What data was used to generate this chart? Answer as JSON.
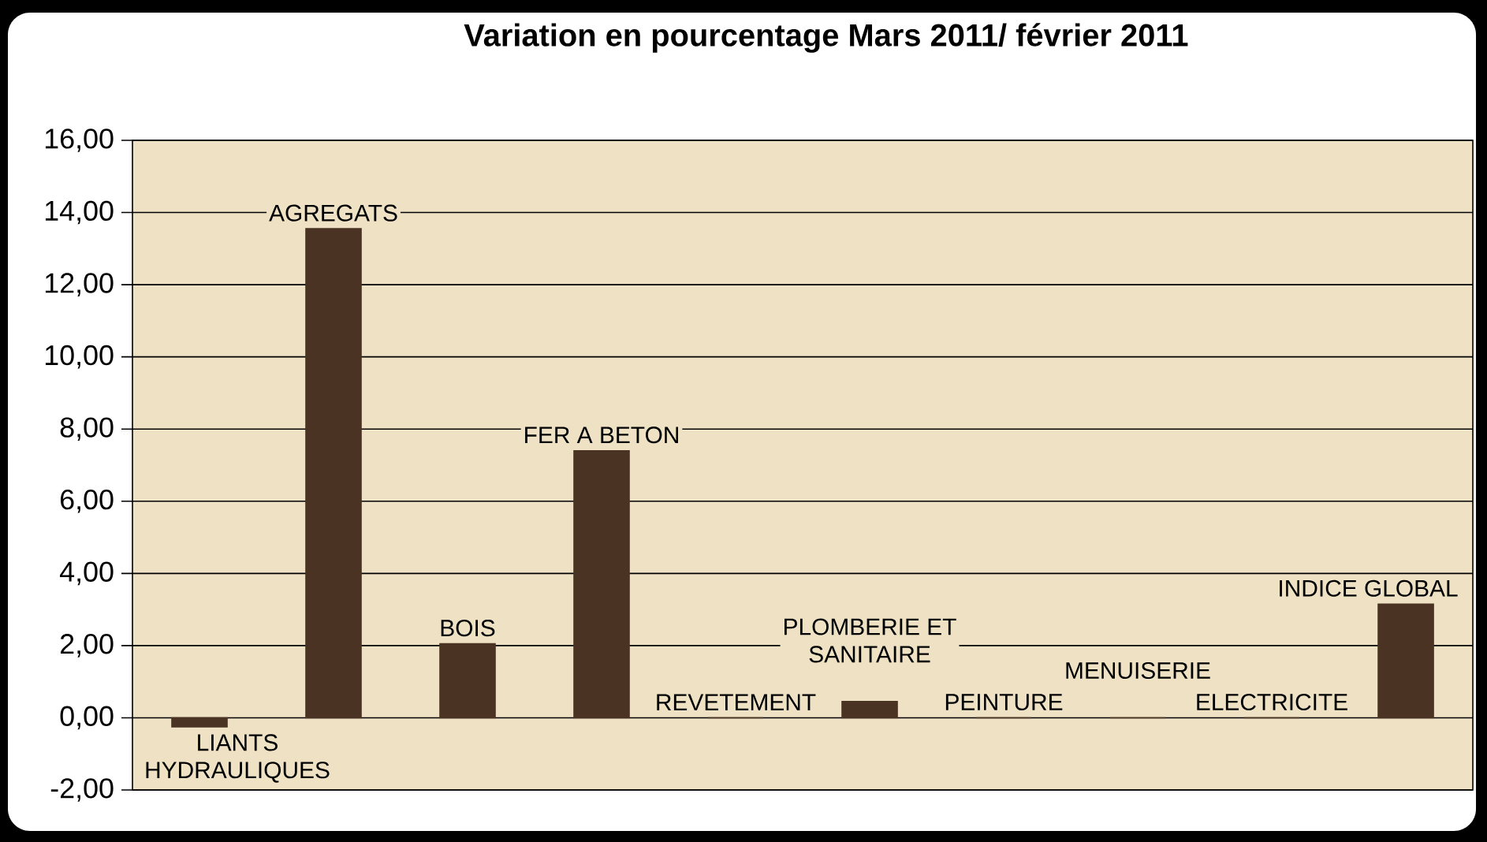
{
  "chart_data": {
    "type": "bar",
    "title": "Variation  en pourcentage Mars 2011/ février 2011",
    "categories": [
      "LIANTS HYDRAULIQUES",
      "AGREGATS",
      "BOIS",
      "FER A BETON",
      "REVETEMENT",
      "PLOMBERIE ET SANITAIRE",
      "PEINTURE",
      "MENUISERIE",
      "ELECTRICITE",
      "INDICE GLOBAL"
    ],
    "values": [
      -0.25,
      13.55,
      2.05,
      7.4,
      0,
      0.45,
      0,
      0,
      0,
      3.15
    ],
    "color": "#4b3323",
    "ylim": [
      -2,
      16
    ],
    "yticks": [
      {
        "value": -2,
        "label": "-2,00"
      },
      {
        "value": 0,
        "label": "0,00"
      },
      {
        "value": 2,
        "label": "2,00"
      },
      {
        "value": 4,
        "label": "4,00"
      },
      {
        "value": 6,
        "label": "6,00"
      },
      {
        "value": 8,
        "label": "8,00"
      },
      {
        "value": 10,
        "label": "10,00"
      },
      {
        "value": 12,
        "label": "12,00"
      },
      {
        "value": 14,
        "label": "14,00"
      },
      {
        "value": 16,
        "label": "16,00"
      }
    ],
    "grid": "y"
  }
}
